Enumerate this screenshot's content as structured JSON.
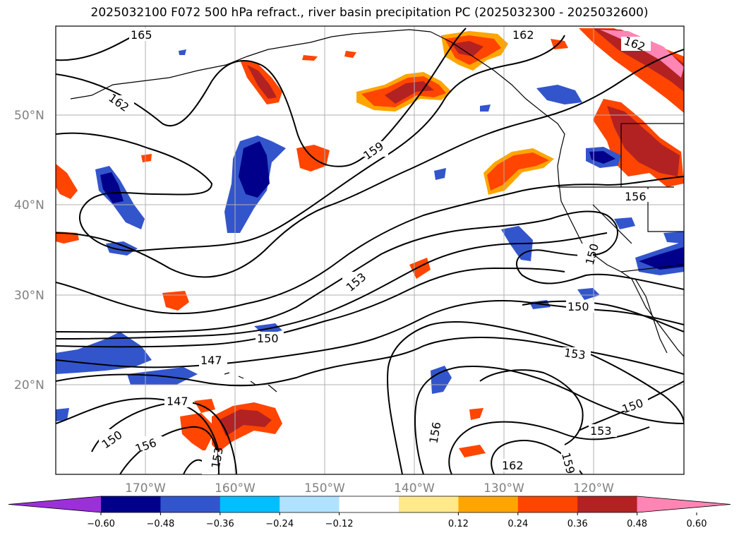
{
  "title": "2025032100 F072 500 hPa refract., river basin precipitation PC (2025032300 - 2025032600)",
  "map": {
    "lat_labels": [
      "50°N",
      "40°N",
      "30°N",
      "20°N"
    ],
    "lon_labels": [
      "170°W",
      "160°W",
      "150°W",
      "140°W",
      "130°W",
      "120°W"
    ],
    "contour_labels": [
      "165",
      "162",
      "162",
      "162",
      "159",
      "156",
      "156",
      "153",
      "153",
      "153",
      "153",
      "150",
      "150",
      "150",
      "150",
      "150",
      "147",
      "147",
      "156",
      "159",
      "162"
    ],
    "colors": {
      "contour": "#000000",
      "grid": "#b0b0b0",
      "coast": "#000000",
      "neg_dark": "#00008b",
      "neg_mid": "#3355cc",
      "neg_light": "#00bfff",
      "neg_pale": "#b0e2ff",
      "pos_pale": "#ffe98a",
      "pos_light": "#ffa500",
      "pos_mid": "#ff4500",
      "pos_dark": "#b22222",
      "pos_max": "#ff85b4"
    }
  },
  "colorbar": {
    "ticks": [
      "−0.60",
      "−0.48",
      "−0.36",
      "−0.24",
      "−0.12",
      "0.12",
      "0.24",
      "0.36",
      "0.48",
      "0.60"
    ],
    "colors": [
      "#9b30d9",
      "#00008b",
      "#3355cc",
      "#00bfff",
      "#b0e2ff",
      "#ffffff",
      "#ffe98a",
      "#ffa500",
      "#ff4500",
      "#b22222",
      "#ff85b4"
    ]
  }
}
